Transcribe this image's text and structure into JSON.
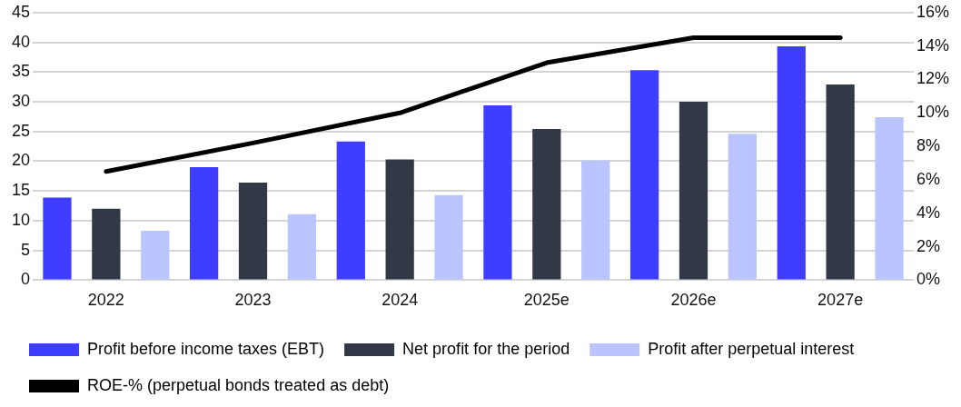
{
  "chart_data": {
    "type": "bar",
    "categories": [
      "2022",
      "2023",
      "2024",
      "2025e",
      "2026e",
      "2027e"
    ],
    "series": [
      {
        "name": "Profit before income taxes (EBT)",
        "color": "#3f3dff",
        "values": [
          13.9,
          19.0,
          23.3,
          29.4,
          35.3,
          39.3
        ]
      },
      {
        "name": "Net profit for the period",
        "color": "#323845",
        "values": [
          12.0,
          16.4,
          20.3,
          25.4,
          30.0,
          32.9
        ]
      },
      {
        "name": "Profit after perpetual interest",
        "color": "#bac5ff",
        "values": [
          8.3,
          11.1,
          14.3,
          20.1,
          24.6,
          27.4
        ]
      },
      {
        "name": "ROE-% (perpetual bonds treated as debt)",
        "type": "line",
        "axis": "y2",
        "color": "#000000",
        "values": [
          6.5,
          8.2,
          10.0,
          13.0,
          14.5,
          14.5
        ]
      }
    ],
    "ylim": [
      0,
      45
    ],
    "yticks": [
      0,
      5,
      10,
      15,
      20,
      25,
      30,
      35,
      40,
      45
    ],
    "y2lim": [
      0,
      16
    ],
    "y2ticks": [
      {
        "value": 0,
        "label": "0%"
      },
      {
        "value": 2,
        "label": "2%"
      },
      {
        "value": 4,
        "label": "4%"
      },
      {
        "value": 6,
        "label": "6%"
      },
      {
        "value": 8,
        "label": "8%"
      },
      {
        "value": 10,
        "label": "10%"
      },
      {
        "value": 12,
        "label": "12%"
      },
      {
        "value": 14,
        "label": "14%"
      },
      {
        "value": 16,
        "label": "16%"
      }
    ],
    "grid": "y",
    "legend": "bottom",
    "marker": "none",
    "line_style": "solid"
  }
}
